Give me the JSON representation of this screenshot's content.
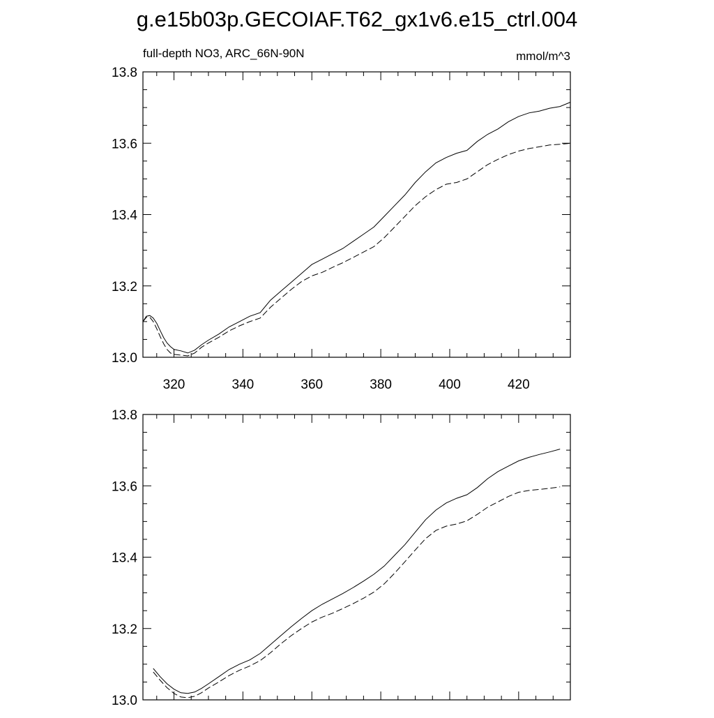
{
  "title": "g.e15b03p.GECOIAF.T62_gx1v6.e15_ctrl.004",
  "chart_data": [
    {
      "type": "line",
      "subtitle_left": "full-depth NO3, ARC_66N-90N",
      "subtitle_right": "mmol/m^3",
      "xlim": [
        311,
        435
      ],
      "ylim": [
        13.0,
        13.8
      ],
      "xticks": [
        320,
        340,
        360,
        380,
        400,
        420
      ],
      "xtick_labels": [
        "320",
        "340",
        "360",
        "380",
        "400",
        "420"
      ],
      "yticks": [
        13.0,
        13.2,
        13.4,
        13.6,
        13.8
      ],
      "ytick_labels": [
        "13.0",
        "13.2",
        "13.4",
        "13.6",
        "13.8"
      ],
      "grid": false,
      "series": [
        {
          "style": "solid",
          "x": [
            311,
            312,
            313,
            314,
            315,
            316,
            317,
            318,
            319,
            320,
            322,
            324,
            326,
            328,
            330,
            333,
            336,
            339,
            342,
            345,
            348,
            351,
            354,
            357,
            360,
            363,
            366,
            369,
            372,
            375,
            378,
            381,
            384,
            387,
            390,
            393,
            396,
            399,
            402,
            405,
            408,
            411,
            414,
            417,
            420,
            423,
            426,
            429,
            432,
            435
          ],
          "y": [
            13.1,
            13.115,
            13.117,
            13.11,
            13.095,
            13.075,
            13.055,
            13.04,
            13.03,
            13.022,
            13.018,
            13.012,
            13.02,
            13.035,
            13.048,
            13.065,
            13.085,
            13.1,
            13.115,
            13.125,
            13.16,
            13.185,
            13.21,
            13.235,
            13.26,
            13.275,
            13.29,
            13.305,
            13.325,
            13.345,
            13.365,
            13.395,
            13.425,
            13.455,
            13.49,
            13.52,
            13.545,
            13.56,
            13.572,
            13.58,
            13.605,
            13.625,
            13.64,
            13.66,
            13.675,
            13.685,
            13.69,
            13.698,
            13.703,
            13.715
          ]
        },
        {
          "style": "dashed",
          "x": [
            311,
            312,
            313,
            314,
            315,
            316,
            317,
            318,
            319,
            320,
            322,
            324,
            326,
            328,
            330,
            333,
            336,
            339,
            342,
            345,
            348,
            351,
            354,
            357,
            360,
            363,
            366,
            369,
            372,
            375,
            378,
            381,
            384,
            387,
            390,
            393,
            396,
            399,
            402,
            405,
            408,
            411,
            414,
            417,
            420,
            423,
            426,
            429,
            432,
            435
          ],
          "y": [
            13.1,
            13.112,
            13.112,
            13.1,
            13.08,
            13.058,
            13.038,
            13.022,
            13.012,
            13.008,
            13.006,
            13.004,
            13.012,
            13.028,
            13.04,
            13.056,
            13.074,
            13.088,
            13.1,
            13.11,
            13.14,
            13.165,
            13.19,
            13.212,
            13.228,
            13.238,
            13.252,
            13.265,
            13.28,
            13.295,
            13.31,
            13.335,
            13.365,
            13.395,
            13.425,
            13.45,
            13.47,
            13.485,
            13.49,
            13.5,
            13.52,
            13.54,
            13.555,
            13.568,
            13.578,
            13.585,
            13.59,
            13.595,
            13.597,
            13.6
          ]
        }
      ]
    },
    {
      "type": "line",
      "xlim": [
        311,
        435
      ],
      "ylim": [
        13.0,
        13.8
      ],
      "xticks": [
        320,
        340,
        360,
        380,
        400,
        420
      ],
      "yticks": [
        13.0,
        13.2,
        13.4,
        13.6,
        13.8
      ],
      "ytick_labels": [
        "13.0",
        "13.2",
        "13.4",
        "13.6",
        "13.8"
      ],
      "grid": false,
      "series": [
        {
          "style": "solid",
          "x": [
            314,
            316,
            318,
            320,
            322,
            324,
            326,
            328,
            330,
            333,
            336,
            339,
            342,
            345,
            348,
            351,
            354,
            357,
            360,
            363,
            366,
            369,
            372,
            375,
            378,
            381,
            384,
            387,
            390,
            393,
            396,
            399,
            402,
            405,
            408,
            411,
            414,
            417,
            420,
            423,
            426,
            429,
            432
          ],
          "y": [
            13.088,
            13.065,
            13.045,
            13.03,
            13.02,
            13.018,
            13.022,
            13.032,
            13.045,
            13.065,
            13.085,
            13.1,
            13.112,
            13.13,
            13.155,
            13.18,
            13.205,
            13.228,
            13.25,
            13.268,
            13.283,
            13.298,
            13.315,
            13.333,
            13.352,
            13.375,
            13.405,
            13.435,
            13.47,
            13.505,
            13.532,
            13.552,
            13.565,
            13.575,
            13.595,
            13.62,
            13.64,
            13.655,
            13.67,
            13.68,
            13.688,
            13.695,
            13.703
          ]
        },
        {
          "style": "dashed",
          "x": [
            314,
            316,
            318,
            320,
            322,
            324,
            326,
            328,
            330,
            333,
            336,
            339,
            342,
            345,
            348,
            351,
            354,
            357,
            360,
            363,
            366,
            369,
            372,
            375,
            378,
            381,
            384,
            387,
            390,
            393,
            396,
            399,
            402,
            405,
            408,
            411,
            414,
            417,
            420,
            423,
            426,
            429,
            432
          ],
          "y": [
            13.078,
            13.055,
            13.034,
            13.018,
            13.008,
            13.006,
            13.01,
            13.02,
            13.033,
            13.05,
            13.068,
            13.083,
            13.095,
            13.11,
            13.132,
            13.157,
            13.18,
            13.2,
            13.218,
            13.232,
            13.243,
            13.256,
            13.27,
            13.285,
            13.302,
            13.325,
            13.355,
            13.387,
            13.42,
            13.452,
            13.475,
            13.487,
            13.493,
            13.502,
            13.52,
            13.54,
            13.555,
            13.57,
            13.582,
            13.587,
            13.59,
            13.593,
            13.597
          ]
        }
      ]
    }
  ]
}
